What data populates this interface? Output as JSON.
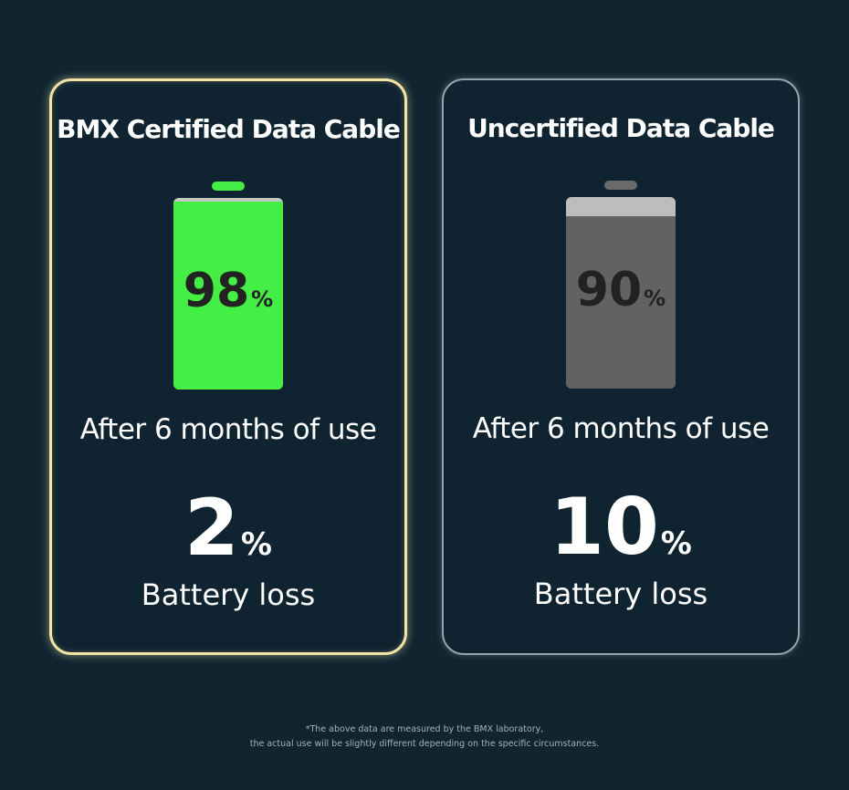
{
  "colors": {
    "background": "#102530",
    "certified_border": "#f2e3a6",
    "uncertified_border": "#95a3aa",
    "certified_battery_fill": "#45ee45",
    "certified_battery_empty": "#c7c7c7",
    "uncertified_battery_fill": "#626262",
    "uncertified_battery_empty": "#bdbdbd",
    "battery_text": "#222222"
  },
  "cards": [
    {
      "title": "BMX Certified Data Cable",
      "battery_level": 98,
      "battery_value": "98",
      "battery_unit": "%",
      "battery_icon": "battery-icon",
      "caption": "After 6 months of use",
      "loss_value": "2",
      "loss_unit": "%",
      "loss_label": "Battery loss"
    },
    {
      "title": "Uncertified Data Cable",
      "battery_level": 90,
      "battery_value": "90",
      "battery_unit": "%",
      "battery_icon": "battery-icon",
      "caption": "After 6 months of use",
      "loss_value": "10",
      "loss_unit": "%",
      "loss_label": "Battery loss"
    }
  ],
  "footnote": {
    "line1": "*The above data are measured by the BMX laboratory,",
    "line2": "the actual use will be slightly different depending on the specific circumstances."
  }
}
